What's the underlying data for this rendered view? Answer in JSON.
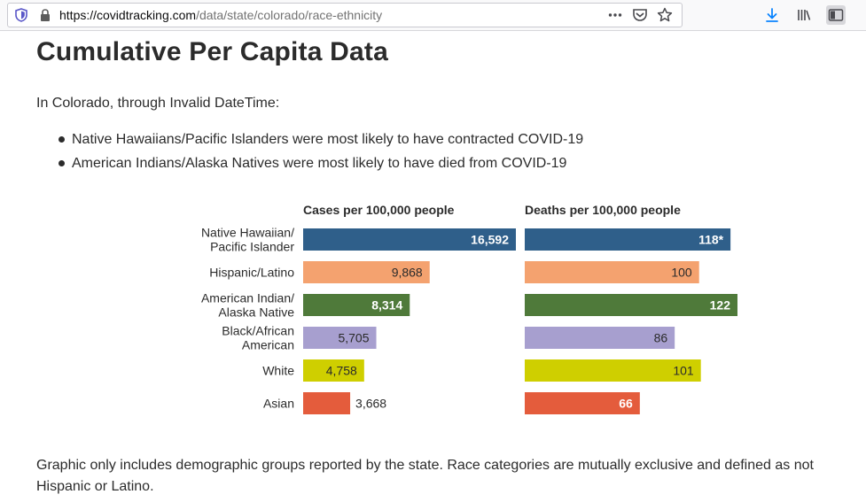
{
  "browser": {
    "url_host": "https://covidtracking.com",
    "url_path": "/data/state/colorado/race-ethnicity"
  },
  "page": {
    "title": "Cumulative Per Capita Data",
    "intro": "In Colorado, through Invalid DateTime:",
    "findings": [
      "Native Hawaiians/Pacific Islanders were most likely to have contracted COVID-19",
      "American Indians/Alaska Natives were most likely to have died from COVID-19"
    ],
    "footnote": "Graphic only includes demographic groups reported by the state. Race categories are mutually exclusive and defined as not Hispanic or Latino."
  },
  "chart_data": {
    "type": "bar",
    "orientation": "horizontal",
    "categories": [
      [
        "Native Hawaiian/",
        "Pacific Islander"
      ],
      [
        "Hispanic/Latino"
      ],
      [
        "American Indian/",
        "Alaska Native"
      ],
      [
        "Black/African",
        "American"
      ],
      [
        "White"
      ],
      [
        "Asian"
      ]
    ],
    "colors": [
      "#2f5f8a",
      "#f4a26f",
      "#4f7a3a",
      "#a79fcf",
      "#cfcf00",
      "#e45c3c"
    ],
    "series": [
      {
        "name": "Cases per 100,000 people",
        "values": [
          16592,
          9868,
          8314,
          5705,
          4758,
          3668
        ],
        "labels": [
          "16,592",
          "9,868",
          "8,314",
          "5,705",
          "4,758",
          "3,668"
        ],
        "max": 16592
      },
      {
        "name": "Deaths per 100,000 people",
        "values": [
          118,
          100,
          122,
          86,
          101,
          66
        ],
        "labels": [
          "118*",
          "100",
          "122",
          "86",
          "101",
          "66"
        ],
        "max": 122
      }
    ]
  }
}
